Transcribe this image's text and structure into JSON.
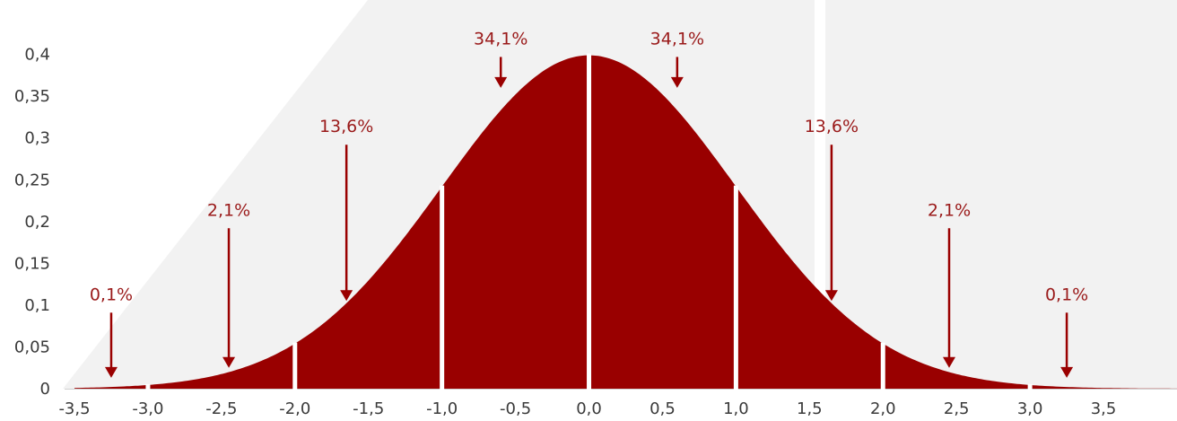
{
  "chart_data": {
    "type": "area",
    "title": "",
    "xlabel": "",
    "ylabel": "",
    "xlim": [
      -3.5,
      4.0
    ],
    "ylim": [
      0,
      0.42
    ],
    "fill_color": "#990000",
    "background_shape_color": "#f2f2f2",
    "divider_color": "#ffffff",
    "curve": "standard normal density",
    "x_ticks": [
      -3.5,
      -3.0,
      -2.5,
      -2.0,
      -1.5,
      -1.0,
      -0.5,
      0.0,
      0.5,
      1.0,
      1.5,
      2.0,
      2.5,
      3.0,
      3.5
    ],
    "x_tick_labels": [
      "-3,5",
      "-3,0",
      "-2,5",
      "-2,0",
      "-1,5",
      "-1,0",
      "-0,5",
      "0,0",
      "0,5",
      "1,0",
      "1,5",
      "2,0",
      "2,5",
      "3,0",
      "3,5"
    ],
    "y_ticks": [
      0,
      0.05,
      0.1,
      0.15,
      0.2,
      0.25,
      0.3,
      0.35,
      0.4
    ],
    "y_tick_labels": [
      "0",
      "0,05",
      "0,1",
      "0,15",
      "0,2",
      "0,25",
      "0,3",
      "0,35",
      "0,4"
    ],
    "dividers": [
      -3,
      -2,
      -1,
      0,
      1,
      2,
      3
    ],
    "annotations": [
      {
        "label": "0,1%",
        "x": -3.25,
        "label_y": 0.106,
        "arrow_end_y": 0.013
      },
      {
        "label": "2,1%",
        "x": -2.45,
        "label_y": 0.207,
        "arrow_end_y": 0.025
      },
      {
        "label": "13,6%",
        "x": -1.65,
        "label_y": 0.307,
        "arrow_end_y": 0.105
      },
      {
        "label": "34,1%",
        "x": -0.6,
        "label_y": 0.412,
        "arrow_end_y": 0.36
      },
      {
        "label": "34,1%",
        "x": 0.6,
        "label_y": 0.412,
        "arrow_end_y": 0.36
      },
      {
        "label": "13,6%",
        "x": 1.65,
        "label_y": 0.307,
        "arrow_end_y": 0.105
      },
      {
        "label": "2,1%",
        "x": 2.45,
        "label_y": 0.207,
        "arrow_end_y": 0.025
      },
      {
        "label": "0,1%",
        "x": 3.25,
        "label_y": 0.106,
        "arrow_end_y": 0.013
      }
    ]
  }
}
